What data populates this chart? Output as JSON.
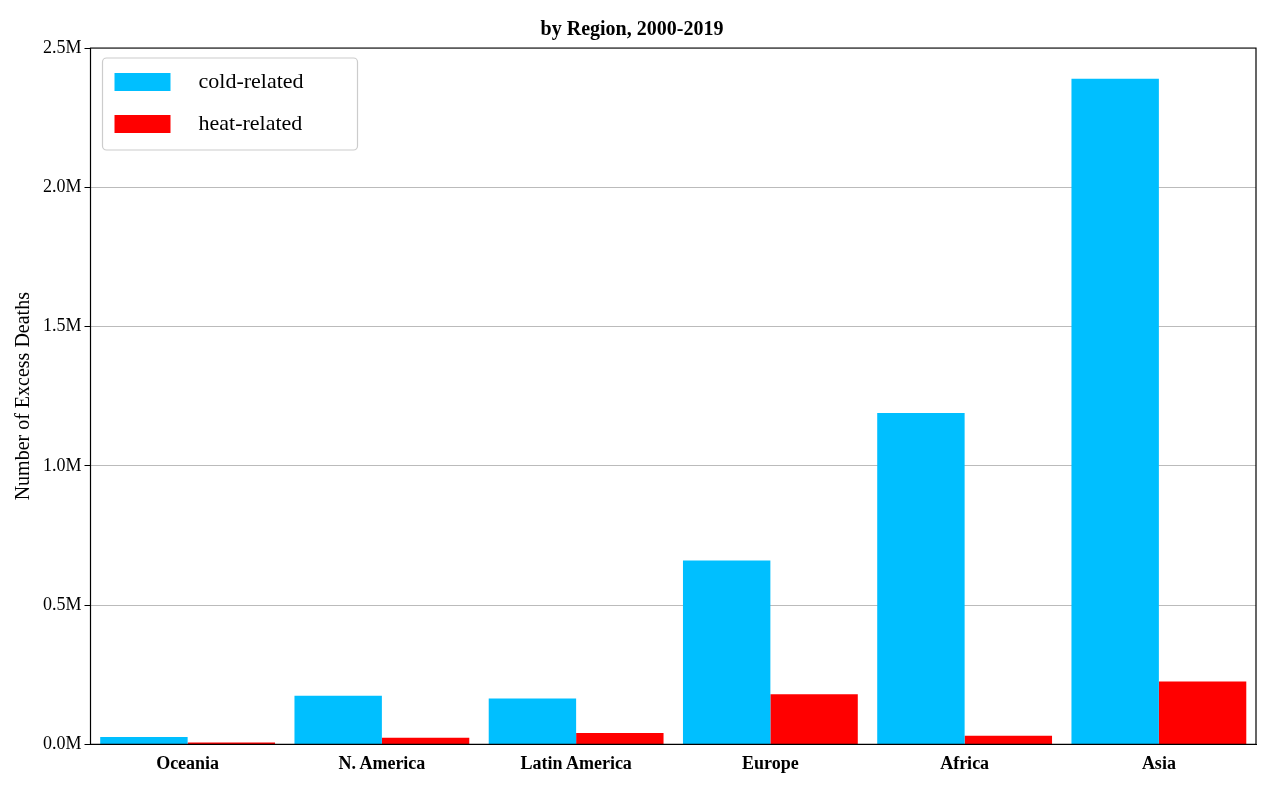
{
  "chart_data": {
    "type": "bar",
    "title": "by Region, 2000-2019",
    "ylabel": "Number of Excess Deaths",
    "categories": [
      "Oceania",
      "N. America",
      "Latin America",
      "Europe",
      "Africa",
      "Asia"
    ],
    "series": [
      {
        "name": "cold-related",
        "color": "#00bfff",
        "values": [
          0.027,
          0.175,
          0.165,
          0.66,
          1.19,
          2.39
        ]
      },
      {
        "name": "heat-related",
        "color": "#ff0000",
        "values": [
          0.007,
          0.024,
          0.041,
          0.18,
          0.031,
          0.226
        ]
      }
    ],
    "ylim": [
      0,
      2.5
    ],
    "yticks": [
      {
        "value": 0,
        "label": "0.0M"
      },
      {
        "value": 0.5,
        "label": "0.5M"
      },
      {
        "value": 1,
        "label": "1.0M"
      },
      {
        "value": 1.5,
        "label": "1.5M"
      },
      {
        "value": 2,
        "label": "2.0M"
      },
      {
        "value": 2.5,
        "label": "2.5M"
      }
    ],
    "grid": "y",
    "legend": "top left"
  }
}
